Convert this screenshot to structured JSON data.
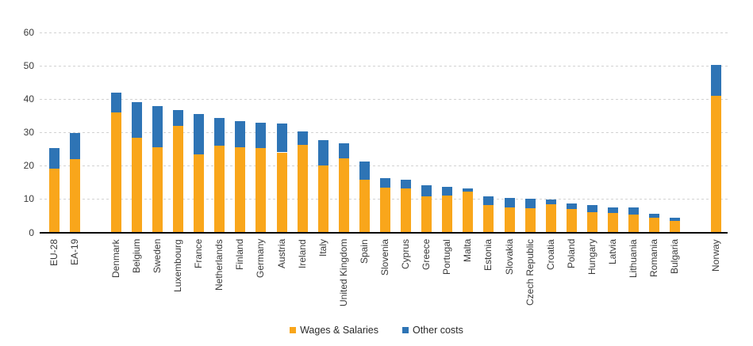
{
  "chart_data": {
    "type": "bar",
    "stacked": true,
    "title": "",
    "xlabel": "",
    "ylabel": "",
    "ylim": [
      0,
      60
    ],
    "yticks": [
      0,
      10,
      20,
      30,
      40,
      50,
      60
    ],
    "grid": "horizontal-dashed",
    "legend_position": "bottom-center",
    "categories": [
      "EU-28",
      "EA-19",
      "",
      "Denmark",
      "Belgium",
      "Sweden",
      "Luxembourg",
      "France",
      "Netherlands",
      "Finland",
      "Germany",
      "Austria",
      "Ireland",
      "Italy",
      "United Kingdom",
      "Spain",
      "Slovenia",
      "Cyprus",
      "Greece",
      "Portugal",
      "Malta",
      "Estonia",
      "Slovakia",
      "Czech Republic",
      "Croatia",
      "Poland",
      "Hungary",
      "Latvia",
      "Lithuania",
      "Romania",
      "Bulgaria",
      "",
      "Norway"
    ],
    "series": [
      {
        "name": "Wages & Salaries",
        "color": "#F9A61B",
        "values": [
          19.2,
          22.0,
          null,
          36.1,
          28.4,
          25.5,
          31.9,
          23.4,
          26.1,
          25.6,
          25.3,
          24.0,
          26.2,
          20.1,
          22.2,
          15.8,
          13.5,
          13.1,
          10.8,
          11.0,
          12.3,
          8.1,
          7.5,
          7.2,
          8.5,
          7.0,
          6.1,
          5.9,
          5.4,
          4.5,
          3.5,
          null,
          41.0
        ]
      },
      {
        "name": "Other costs",
        "color": "#2E74B5",
        "values": [
          6.2,
          7.8,
          null,
          5.9,
          10.8,
          12.5,
          4.7,
          12.2,
          8.2,
          7.7,
          7.5,
          8.7,
          4.2,
          7.7,
          4.5,
          5.5,
          2.7,
          2.7,
          3.4,
          2.7,
          0.9,
          2.8,
          2.9,
          3.0,
          1.4,
          1.6,
          2.2,
          1.6,
          2.0,
          1.1,
          0.9,
          null,
          9.2
        ]
      }
    ]
  },
  "legend": {
    "wages_label": "Wages & Salaries",
    "other_label": "Other costs"
  },
  "colors": {
    "wages": "#F9A61B",
    "other": "#2E74B5",
    "gridline": "#D2D2D2",
    "axis": "#000000",
    "text": "#3A3A3A"
  }
}
